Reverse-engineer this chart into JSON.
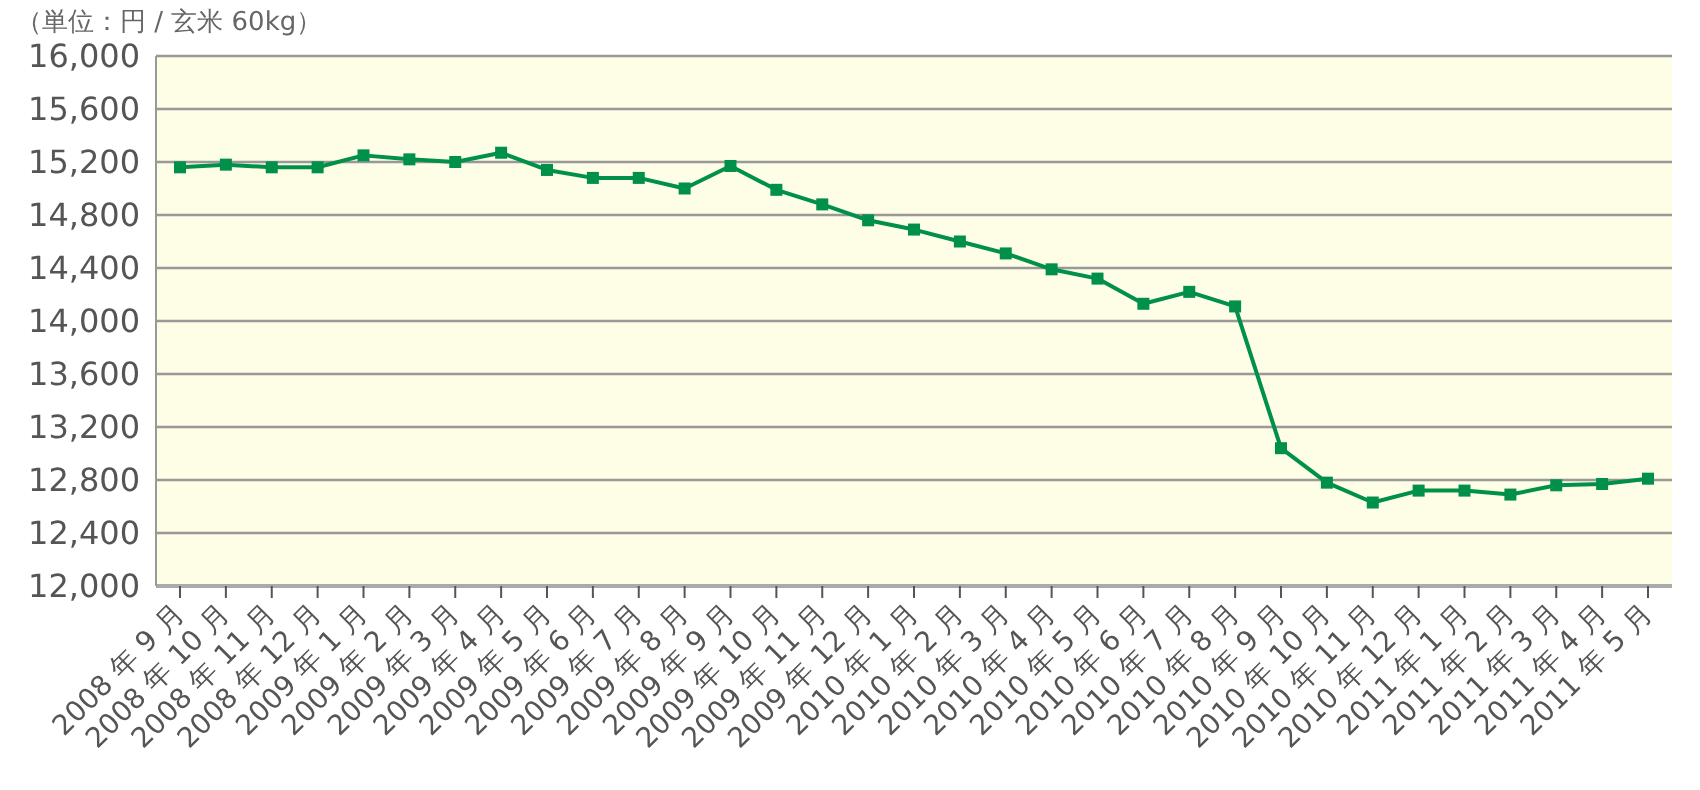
{
  "chart_data": {
    "type": "line",
    "ylabel": "（単位：円 / 玄米 60kg）",
    "categories": [
      "2008 年 9 月",
      "2008 年 10 月",
      "2008 年 11 月",
      "2008 年 12 月",
      "2009 年 1 月",
      "2009 年 2 月",
      "2009 年 3 月",
      "2009 年 4 月",
      "2009 年 5 月",
      "2009 年 6 月",
      "2009 年 7 月",
      "2009 年 8 月",
      "2009 年 9 月",
      "2009 年 10 月",
      "2009 年 11 月",
      "2009 年 12 月",
      "2010 年 1 月",
      "2010 年 2 月",
      "2010 年 3 月",
      "2010 年 4 月",
      "2010 年 5 月",
      "2010 年 6 月",
      "2010 年 7 月",
      "2010 年 8 月",
      "2010 年 9 月",
      "2010 年 10 月",
      "2010 年 11 月",
      "2010 年 12 月",
      "2011 年 1 月",
      "2011 年 2 月",
      "2011 年 3 月",
      "2011 年 4 月",
      "2011 年 5 月"
    ],
    "series": [
      {
        "color": "#00904a",
        "values": [
          15160,
          15180,
          15160,
          15160,
          15250,
          15220,
          15200,
          15270,
          15140,
          15080,
          15080,
          15000,
          15170,
          14990,
          14880,
          14760,
          14690,
          14600,
          14510,
          14390,
          14320,
          14130,
          14220,
          14110,
          13040,
          12780,
          12630,
          12720,
          12720,
          12690,
          12760,
          12770,
          12810
        ]
      }
    ],
    "ylim": [
      12000,
      16000
    ],
    "yticks": [
      {
        "value": 12000,
        "label": "12,000"
      },
      {
        "value": 12400,
        "label": "12,400"
      },
      {
        "value": 12800,
        "label": "12,800"
      },
      {
        "value": 13200,
        "label": "13,200"
      },
      {
        "value": 13600,
        "label": "13,600"
      },
      {
        "value": 14000,
        "label": "14,000"
      },
      {
        "value": 14400,
        "label": "14,400"
      },
      {
        "value": 14800,
        "label": "14,800"
      },
      {
        "value": 15200,
        "label": "15,200"
      },
      {
        "value": 15600,
        "label": "15,600"
      },
      {
        "value": 16000,
        "label": "16,000"
      }
    ],
    "grid": "y",
    "marker": "square",
    "line_style": "solid"
  }
}
